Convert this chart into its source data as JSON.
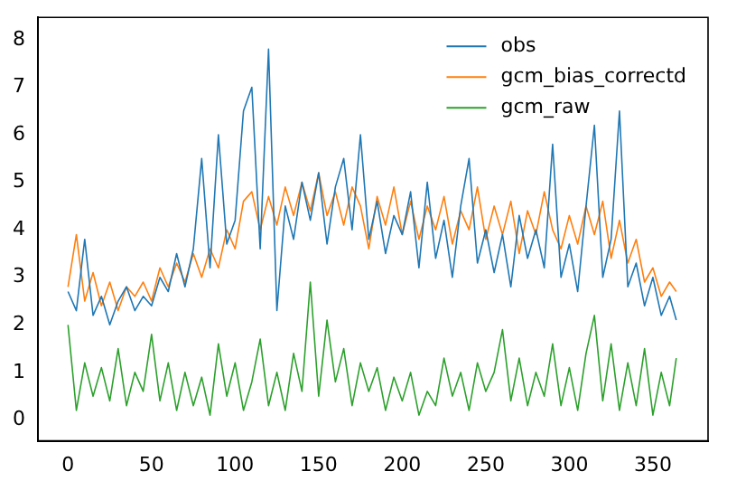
{
  "chart_data": {
    "type": "line",
    "x": [
      0,
      5,
      10,
      15,
      20,
      25,
      30,
      35,
      40,
      45,
      50,
      55,
      60,
      65,
      70,
      75,
      80,
      85,
      90,
      95,
      100,
      105,
      110,
      115,
      120,
      125,
      130,
      135,
      140,
      145,
      150,
      155,
      160,
      165,
      170,
      175,
      180,
      185,
      190,
      195,
      200,
      205,
      210,
      215,
      220,
      225,
      230,
      235,
      240,
      245,
      250,
      255,
      260,
      265,
      270,
      275,
      280,
      285,
      290,
      295,
      300,
      305,
      310,
      315,
      320,
      325,
      330,
      335,
      340,
      345,
      350,
      355,
      360,
      364
    ],
    "series": [
      {
        "name": "obs",
        "color": "#1f77b4",
        "values": [
          2.7,
          2.3,
          3.8,
          2.2,
          2.6,
          2.0,
          2.5,
          2.8,
          2.3,
          2.6,
          2.4,
          3.0,
          2.7,
          3.5,
          2.8,
          3.6,
          5.5,
          3.2,
          6.0,
          3.7,
          4.2,
          6.5,
          7.0,
          3.6,
          7.8,
          2.3,
          4.5,
          3.8,
          5.0,
          4.2,
          5.2,
          3.7,
          4.9,
          5.5,
          4.0,
          6.0,
          3.8,
          4.6,
          3.5,
          4.3,
          3.9,
          4.8,
          3.2,
          5.0,
          3.4,
          4.2,
          3.0,
          4.5,
          5.5,
          3.3,
          4.0,
          3.1,
          3.9,
          2.8,
          4.3,
          3.4,
          4.0,
          3.2,
          5.8,
          3.0,
          3.7,
          2.7,
          4.5,
          6.2,
          3.0,
          3.8,
          6.5,
          2.8,
          3.3,
          2.4,
          3.0,
          2.2,
          2.6,
          2.1
        ]
      },
      {
        "name": "gcm_bias_correctd",
        "color": "#ff7f0e",
        "values": [
          2.8,
          3.9,
          2.5,
          3.1,
          2.4,
          2.9,
          2.3,
          2.8,
          2.6,
          2.9,
          2.5,
          3.2,
          2.8,
          3.3,
          2.9,
          3.5,
          3.0,
          3.6,
          3.2,
          4.0,
          3.6,
          4.6,
          4.8,
          4.0,
          4.7,
          4.1,
          4.9,
          4.3,
          5.0,
          4.4,
          5.2,
          4.3,
          4.8,
          4.1,
          4.9,
          4.5,
          3.6,
          4.7,
          4.1,
          4.9,
          3.9,
          4.6,
          3.8,
          4.5,
          4.0,
          4.7,
          3.7,
          4.4,
          4.0,
          4.9,
          3.8,
          4.5,
          3.9,
          4.6,
          3.5,
          4.4,
          3.9,
          4.8,
          4.0,
          3.6,
          4.3,
          3.7,
          4.5,
          3.9,
          4.6,
          3.4,
          4.2,
          3.3,
          3.8,
          2.9,
          3.2,
          2.6,
          2.9,
          2.7
        ]
      },
      {
        "name": "gcm_raw",
        "color": "#2ca02c",
        "values": [
          2.0,
          0.2,
          1.2,
          0.5,
          1.1,
          0.4,
          1.5,
          0.3,
          1.0,
          0.6,
          1.8,
          0.4,
          1.2,
          0.2,
          1.0,
          0.3,
          0.9,
          0.1,
          1.6,
          0.5,
          1.2,
          0.2,
          0.8,
          1.7,
          0.3,
          1.0,
          0.2,
          1.4,
          0.6,
          2.9,
          0.5,
          2.1,
          0.8,
          1.5,
          0.3,
          1.2,
          0.6,
          1.1,
          0.2,
          0.9,
          0.4,
          1.0,
          0.1,
          0.6,
          0.3,
          1.3,
          0.5,
          1.0,
          0.2,
          1.2,
          0.6,
          1.0,
          1.9,
          0.4,
          1.3,
          0.3,
          1.0,
          0.5,
          1.6,
          0.3,
          1.1,
          0.2,
          1.4,
          2.2,
          0.4,
          1.6,
          0.2,
          1.2,
          0.3,
          1.5,
          0.1,
          1.0,
          0.3,
          1.3
        ]
      }
    ],
    "xlim": [
      -18,
      383
    ],
    "xticks": [
      0,
      50,
      100,
      150,
      200,
      250,
      300,
      350
    ],
    "ylim": [
      -0.44,
      8.47
    ],
    "yticks": [
      0,
      1,
      2,
      3,
      4,
      5,
      6,
      7,
      8
    ],
    "grid": false,
    "legend": "top right",
    "marker": "none",
    "line_style": "solid"
  }
}
